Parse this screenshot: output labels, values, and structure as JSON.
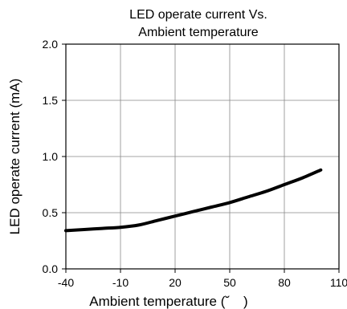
{
  "chart_data": {
    "type": "line",
    "title_line1": "LED operate current Vs.",
    "title_line2": "Ambient temperature",
    "xlabel": "Ambient temperature (˘　)",
    "ylabel": "LED operate current (mA)",
    "xlim": [
      -40,
      110
    ],
    "ylim": [
      0.0,
      2.0
    ],
    "x_ticks": [
      -40,
      -10,
      20,
      50,
      80,
      110
    ],
    "x_tick_labels": [
      "-40",
      "-10",
      "20",
      "50",
      "80",
      "110"
    ],
    "y_ticks": [
      0.0,
      0.5,
      1.0,
      1.5,
      2.0
    ],
    "y_tick_labels": [
      "0.0",
      "0.5",
      "1.0",
      "1.5",
      "2.0"
    ],
    "grid": true,
    "series": [
      {
        "x": [
          -40,
          -30,
          -20,
          -10,
          0,
          10,
          20,
          30,
          40,
          50,
          60,
          70,
          80,
          90,
          100
        ],
        "y": [
          0.34,
          0.35,
          0.36,
          0.37,
          0.39,
          0.43,
          0.47,
          0.51,
          0.55,
          0.59,
          0.64,
          0.69,
          0.75,
          0.81,
          0.88
        ]
      }
    ],
    "line_color": "#000000"
  }
}
